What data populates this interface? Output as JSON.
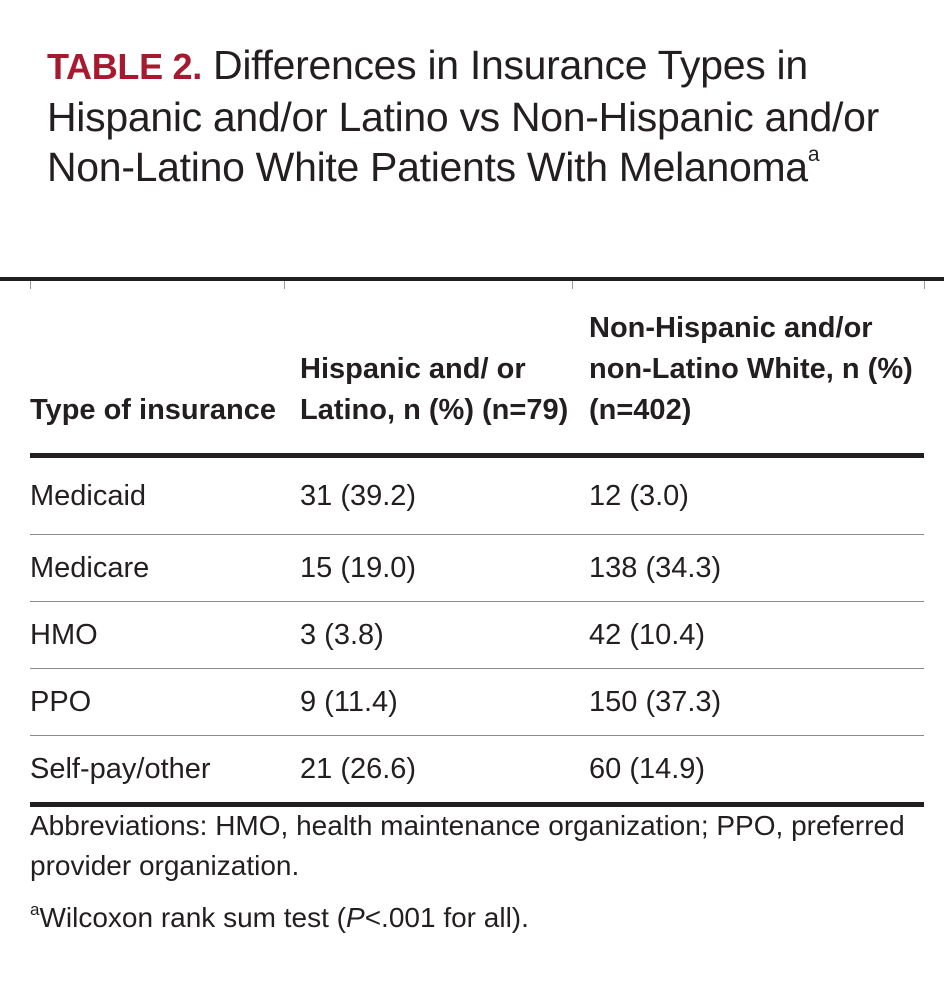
{
  "title": {
    "label": "TABLE 2.",
    "text": "Differences in Insurance Types in Hispanic and/or Latino vs Non-Hispanic and/or Non-Latino White Patients With Melanoma",
    "superscript": "a"
  },
  "table": {
    "headers": [
      "Type of insurance",
      "Hispanic and/ or Latino, n (%) (n=79)",
      "Non-Hispanic and/or non-Latino White, n (%)(n=402)"
    ],
    "rows": [
      [
        "Medicaid",
        "31 (39.2)",
        "12 (3.0)"
      ],
      [
        "Medicare",
        "15 (19.0)",
        "138 (34.3)"
      ],
      [
        "HMO",
        "3 (3.8)",
        "42 (10.4)"
      ],
      [
        "PPO",
        "9 (11.4)",
        "150 (37.3)"
      ],
      [
        "Self-pay/other",
        "21 (26.6)",
        "60 (14.9)"
      ]
    ]
  },
  "footnotes": {
    "abbreviations": "Abbreviations: HMO, health maintenance organization; PPO, preferred provider organization.",
    "note_marker": "a",
    "note_before": "Wilcoxon rank sum test (",
    "note_italic": "P",
    "note_after": "<.001 for all)."
  },
  "colors": {
    "accent": "#a6192e",
    "text": "#231f20"
  }
}
